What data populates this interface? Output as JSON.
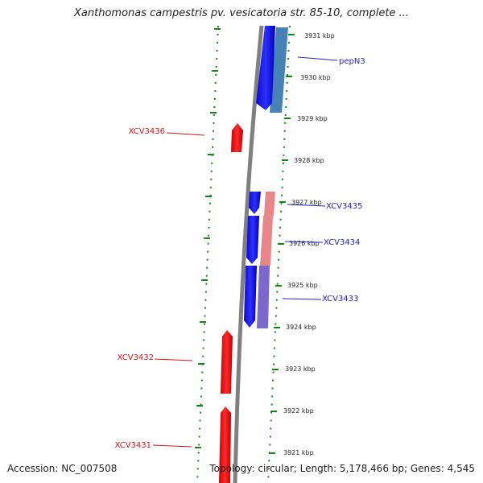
{
  "title": "Xanthomonas campestris pv. vesicatoria str. 85-10, complete ...",
  "footer": {
    "accession": "Accession: NC_007508",
    "topology": "Topology: circular; Length: 5,178,466 bp; Genes: 4,545"
  },
  "position_labels": [
    "3931 kbp",
    "3930 kbp",
    "3929 kbp",
    "3928 kbp",
    "3927 kbp",
    "3926 kbp",
    "3925 kbp",
    "3924 kbp",
    "3923 kbp",
    "3922 kbp",
    "3921 kbp"
  ],
  "genes_forward": [
    "pepN3",
    "XCV3435",
    "XCV3434",
    "XCV3433"
  ],
  "genes_reverse": [
    "XCV3436",
    "XCV3432",
    "XCV3431"
  ],
  "colors": {
    "forward_strand": "#1a1aee",
    "reverse_strand": "#ee1111",
    "forward_label": "#2222cc",
    "reverse_label": "#dd1111",
    "backbone": "#808080",
    "tick": "#118811",
    "blast_blue": "#4682b4",
    "blast_pink": "#e8868a",
    "blast_purple": "#7b68cc"
  }
}
